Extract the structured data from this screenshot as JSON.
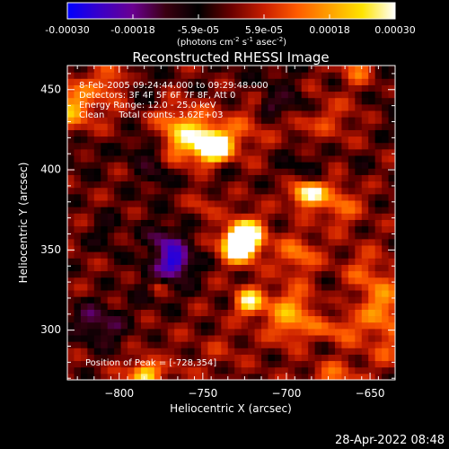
{
  "colorbar": {
    "ticks": [
      "-0.00030",
      "-0.00018",
      "-5.9e-05",
      "5.9e-05",
      "0.00018",
      "0.00030"
    ],
    "units_label": "(photons cm",
    "units_sup1": "-2",
    "units_mid": " s",
    "units_sup2": "-1",
    "units_mid2": " asec",
    "units_sup3": "-2",
    "units_end": ")",
    "min": -0.0003,
    "max": 0.0003,
    "colors": [
      "#0000ff",
      "#3a00c8",
      "#6a0090",
      "#3a0010",
      "#000000",
      "#6a0000",
      "#c81e00",
      "#ff5a00",
      "#ffa000",
      "#ffe400",
      "#ffffff"
    ]
  },
  "chart_data": {
    "type": "heatmap",
    "title": "Reconstructed RHESSI Image",
    "xlabel": "Heliocentric X (arcsec)",
    "ylabel": "Heliocentric Y (arcsec)",
    "xlim": [
      -831,
      -635
    ],
    "ylim": [
      269,
      465
    ],
    "x_ticks": [
      -800,
      -750,
      -700,
      -650
    ],
    "y_ticks": [
      300,
      350,
      400,
      450
    ],
    "x_tick_labels": [
      "−800",
      "−750",
      "−700",
      "−650"
    ],
    "y_tick_labels": [
      "300",
      "350",
      "400",
      "450"
    ],
    "annotations": [
      "8-Feb-2005 09:24:44.000 to 09:29:48.000",
      "Detectors: 3F 4F 5F 6F 7F 8F, Att 0",
      "Energy Range: 12.0 - 25.0 keV",
      "Clean     Total counts: 3.62E+03"
    ],
    "peak_text": "Position of Peak = [-728,354]",
    "peak": [
      -728,
      354
    ]
  },
  "footer": {
    "datetime": "28-Apr-2022 08:48"
  }
}
